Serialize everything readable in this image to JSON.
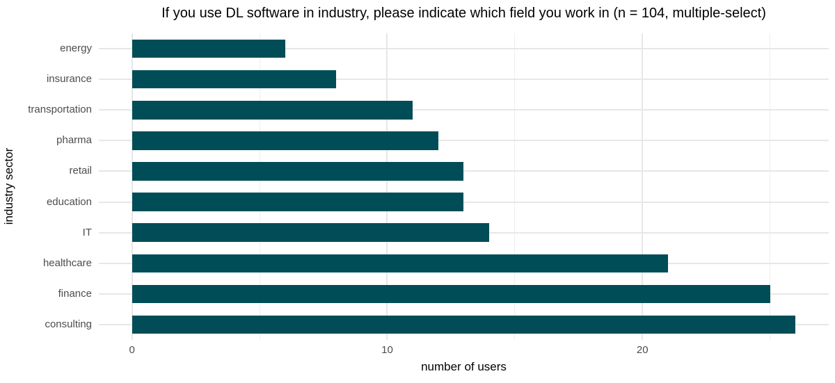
{
  "chart_data": {
    "type": "bar",
    "orientation": "horizontal",
    "title": "If you use DL software in industry, please indicate which field you work in (n = 104, multiple-select)",
    "xlabel": "number of users",
    "ylabel": "industry sector",
    "categories": [
      "energy",
      "insurance",
      "transportation",
      "pharma",
      "retail",
      "education",
      "IT",
      "healthcare",
      "finance",
      "consulting"
    ],
    "values": [
      6,
      8,
      11,
      12,
      13,
      13,
      14,
      21,
      25,
      26
    ],
    "n_respondents": 104,
    "xlim": [
      -1.3,
      27.3
    ],
    "x_major_ticks": [
      0,
      10,
      20
    ],
    "x_minor_ticks": [
      5,
      15,
      25
    ],
    "grid": "on",
    "legend": "none",
    "colors": {
      "bar": "#014D57",
      "grid_major": "#e7e7e7",
      "grid_minor": "#ededed",
      "tick_text": "#4d4d4d",
      "title_text": "#000000",
      "background": "#ffffff"
    }
  }
}
